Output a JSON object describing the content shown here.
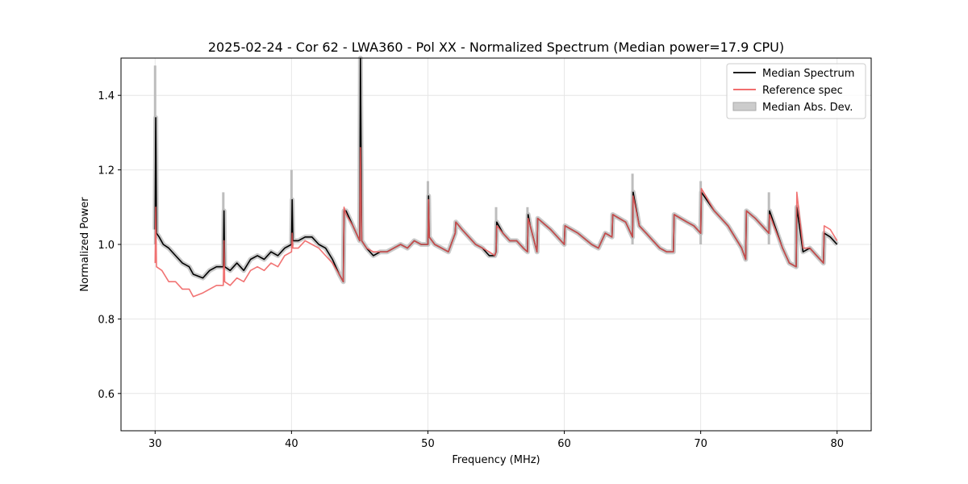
{
  "chart_data": {
    "type": "line",
    "title": "2025-02-24 - Cor 62 - LWA360 - Pol XX - Normalized Spectrum (Median power=17.9 CPU)",
    "xlabel": "Frequency (MHz)",
    "ylabel": "Normalized Power",
    "xlim": [
      27.5,
      82.5
    ],
    "ylim": [
      0.5,
      1.5
    ],
    "xticks": [
      30,
      40,
      50,
      60,
      70,
      80
    ],
    "xtick_labels": [
      "30",
      "40",
      "50",
      "60",
      "70",
      "80"
    ],
    "yticks": [
      0.6,
      0.8,
      1.0,
      1.2,
      1.4
    ],
    "ytick_labels": [
      "0.6",
      "0.8",
      "1.0",
      "1.2",
      "1.4"
    ],
    "grid": true,
    "legend_position": "top-right",
    "series": [
      {
        "name": "Median Spectrum",
        "kind": "line",
        "color": "#000000",
        "x": [
          30.0,
          30.05,
          30.1,
          30.3,
          30.6,
          31.0,
          31.5,
          32.0,
          32.5,
          32.8,
          33.5,
          34.0,
          34.5,
          35.0,
          35.05,
          35.1,
          35.5,
          36.0,
          36.5,
          37.0,
          37.5,
          38.0,
          38.5,
          39.0,
          39.5,
          40.0,
          40.05,
          40.1,
          40.5,
          41.0,
          41.5,
          42.0,
          42.5,
          43.0,
          43.5,
          43.8,
          43.85,
          44.0,
          44.5,
          45.0,
          45.05,
          45.15,
          45.5,
          46.0,
          46.5,
          47.0,
          47.5,
          48.0,
          48.5,
          49.0,
          49.5,
          50.0,
          50.05,
          50.1,
          50.5,
          51.0,
          51.5,
          52.0,
          52.05,
          52.5,
          53.0,
          53.5,
          54.0,
          54.5,
          54.9,
          55.0,
          55.05,
          55.5,
          56.0,
          56.5,
          57.0,
          57.3,
          57.35,
          57.5,
          58.0,
          58.05,
          59.0,
          60.0,
          60.05,
          61.0,
          62.0,
          62.5,
          63.0,
          63.5,
          63.55,
          64.5,
          65.0,
          65.05,
          65.5,
          66.0,
          66.5,
          67.0,
          67.5,
          68.0,
          68.05,
          69.0,
          69.5,
          70.0,
          70.05,
          71.0,
          72.0,
          73.0,
          73.3,
          73.35,
          74.0,
          75.0,
          75.05,
          76.0,
          76.5,
          77.0,
          77.05,
          77.5,
          78.0,
          78.5,
          79.0,
          79.05,
          79.5,
          80.0
        ],
        "y": [
          1.04,
          1.34,
          1.03,
          1.02,
          1.0,
          0.99,
          0.97,
          0.95,
          0.94,
          0.92,
          0.91,
          0.93,
          0.94,
          0.94,
          1.09,
          0.94,
          0.93,
          0.95,
          0.93,
          0.96,
          0.97,
          0.96,
          0.98,
          0.97,
          0.99,
          1.0,
          1.12,
          1.01,
          1.01,
          1.02,
          1.02,
          1.0,
          0.99,
          0.96,
          0.92,
          0.9,
          1.09,
          1.09,
          1.05,
          1.01,
          1.5,
          1.01,
          0.99,
          0.97,
          0.98,
          0.98,
          0.99,
          1.0,
          0.99,
          1.01,
          1.0,
          1.0,
          1.13,
          1.02,
          1.0,
          0.99,
          0.98,
          1.03,
          1.06,
          1.04,
          1.02,
          1.0,
          0.99,
          0.97,
          0.97,
          0.98,
          1.06,
          1.03,
          1.01,
          1.01,
          0.99,
          0.98,
          1.08,
          1.05,
          0.98,
          1.07,
          1.04,
          1.0,
          1.05,
          1.03,
          1.0,
          0.99,
          1.03,
          1.02,
          1.08,
          1.06,
          1.02,
          1.14,
          1.05,
          1.03,
          1.01,
          0.99,
          0.98,
          0.98,
          1.08,
          1.06,
          1.05,
          1.03,
          1.14,
          1.09,
          1.05,
          0.99,
          0.96,
          1.09,
          1.07,
          1.03,
          1.09,
          0.99,
          0.95,
          0.94,
          1.1,
          0.98,
          0.99,
          0.97,
          0.95,
          1.03,
          1.02,
          1.0
        ]
      },
      {
        "name": "Reference spec",
        "kind": "line",
        "color": "#ef5a5a",
        "x": [
          30.0,
          30.05,
          30.1,
          30.5,
          31.0,
          31.5,
          32.0,
          32.5,
          32.8,
          33.5,
          34.0,
          34.5,
          35.0,
          35.05,
          35.1,
          35.5,
          36.0,
          36.5,
          37.0,
          37.5,
          38.0,
          38.5,
          39.0,
          39.5,
          40.0,
          40.05,
          40.1,
          40.5,
          41.0,
          41.5,
          42.0,
          42.5,
          43.0,
          43.5,
          43.8,
          43.85,
          44.0,
          44.5,
          45.0,
          45.05,
          45.15,
          45.5,
          46.0,
          46.5,
          47.0,
          47.5,
          48.0,
          48.5,
          49.0,
          49.5,
          50.0,
          50.05,
          50.1,
          50.5,
          51.0,
          51.5,
          52.0,
          52.05,
          52.5,
          53.0,
          53.5,
          54.0,
          54.5,
          54.9,
          55.0,
          55.05,
          55.5,
          56.0,
          56.5,
          57.0,
          57.3,
          57.35,
          57.5,
          58.0,
          58.05,
          59.0,
          60.0,
          60.05,
          61.0,
          62.0,
          62.5,
          63.0,
          63.5,
          63.55,
          64.5,
          65.0,
          65.05,
          65.5,
          66.0,
          66.5,
          67.0,
          67.5,
          68.0,
          68.05,
          69.0,
          69.5,
          70.0,
          70.05,
          71.0,
          72.0,
          73.0,
          73.3,
          73.35,
          74.0,
          75.0,
          75.05,
          76.0,
          76.5,
          77.0,
          77.05,
          77.5,
          78.0,
          78.5,
          79.0,
          79.05,
          79.5,
          80.0
        ],
        "y": [
          0.95,
          1.1,
          0.94,
          0.93,
          0.9,
          0.9,
          0.88,
          0.88,
          0.86,
          0.87,
          0.88,
          0.89,
          0.89,
          1.01,
          0.9,
          0.89,
          0.91,
          0.9,
          0.93,
          0.94,
          0.93,
          0.95,
          0.94,
          0.97,
          0.98,
          1.03,
          0.99,
          0.99,
          1.01,
          1.0,
          0.99,
          0.97,
          0.95,
          0.92,
          0.9,
          1.1,
          1.08,
          1.05,
          1.01,
          1.26,
          1.01,
          0.99,
          0.98,
          0.98,
          0.98,
          0.99,
          1.0,
          0.99,
          1.01,
          1.0,
          1.0,
          1.12,
          1.02,
          1.0,
          0.99,
          0.98,
          1.03,
          1.06,
          1.04,
          1.02,
          1.0,
          0.99,
          0.98,
          0.97,
          0.98,
          1.05,
          1.03,
          1.01,
          1.01,
          0.99,
          0.98,
          1.07,
          1.05,
          0.98,
          1.07,
          1.04,
          1.0,
          1.05,
          1.03,
          1.0,
          0.99,
          1.03,
          1.02,
          1.08,
          1.06,
          1.02,
          1.13,
          1.05,
          1.03,
          1.01,
          0.99,
          0.98,
          0.98,
          1.08,
          1.06,
          1.05,
          1.03,
          1.15,
          1.09,
          1.05,
          0.99,
          0.96,
          1.09,
          1.07,
          1.03,
          1.08,
          0.99,
          0.95,
          0.94,
          1.14,
          0.99,
          0.99,
          0.97,
          0.95,
          1.05,
          1.04,
          1.01
        ]
      },
      {
        "name": "Median Abs. Dev.",
        "kind": "band",
        "color": "#bbbbbb",
        "note": "shaded band around Median Spectrum, roughly ±0.01; spikes reach 1.48 at 30, 1.14 at 35, 1.20 at 40, 1.17 at 50, 1.19 at 65"
      }
    ]
  }
}
